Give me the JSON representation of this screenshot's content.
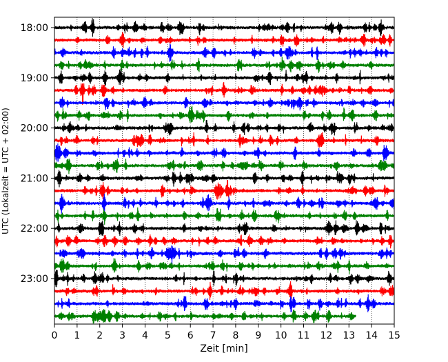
{
  "chart_data": {
    "type": "line",
    "title": "",
    "xlabel": "Zeit  [min]",
    "ylabel": "UTC (Lokalzeit = UTC + 02:00)",
    "xlim": [
      0,
      15
    ],
    "x_ticks": [
      "0",
      "1",
      "2",
      "3",
      "4",
      "5",
      "6",
      "7",
      "8",
      "9",
      "10",
      "11",
      "12",
      "13",
      "14",
      "15"
    ],
    "y_tick_labels": [
      "18:00",
      "19:00",
      "20:00",
      "21:00",
      "22:00",
      "23:00"
    ],
    "grid": "vertical-dotted",
    "row_interval_minutes": 15,
    "series": [
      {
        "start": "18:00",
        "color": "#000000"
      },
      {
        "start": "18:15",
        "color": "#ff0000"
      },
      {
        "start": "18:30",
        "color": "#0000ff"
      },
      {
        "start": "18:45",
        "color": "#008000"
      },
      {
        "start": "19:00",
        "color": "#000000"
      },
      {
        "start": "19:15",
        "color": "#ff0000"
      },
      {
        "start": "19:30",
        "color": "#0000ff"
      },
      {
        "start": "19:45",
        "color": "#008000"
      },
      {
        "start": "20:00",
        "color": "#000000"
      },
      {
        "start": "20:15",
        "color": "#ff0000"
      },
      {
        "start": "20:30",
        "color": "#0000ff"
      },
      {
        "start": "20:45",
        "color": "#008000"
      },
      {
        "start": "21:00",
        "color": "#000000"
      },
      {
        "start": "21:15",
        "color": "#ff0000"
      },
      {
        "start": "21:30",
        "color": "#0000ff"
      },
      {
        "start": "21:45",
        "color": "#008000"
      },
      {
        "start": "22:00",
        "color": "#000000"
      },
      {
        "start": "22:15",
        "color": "#ff0000"
      },
      {
        "start": "22:30",
        "color": "#0000ff"
      },
      {
        "start": "22:45",
        "color": "#008000"
      },
      {
        "start": "23:00",
        "color": "#000000"
      },
      {
        "start": "23:15",
        "color": "#ff0000"
      },
      {
        "start": "23:30",
        "color": "#0000ff"
      },
      {
        "start": "23:45",
        "color": "#008000",
        "end_minute": 13.3
      }
    ]
  }
}
